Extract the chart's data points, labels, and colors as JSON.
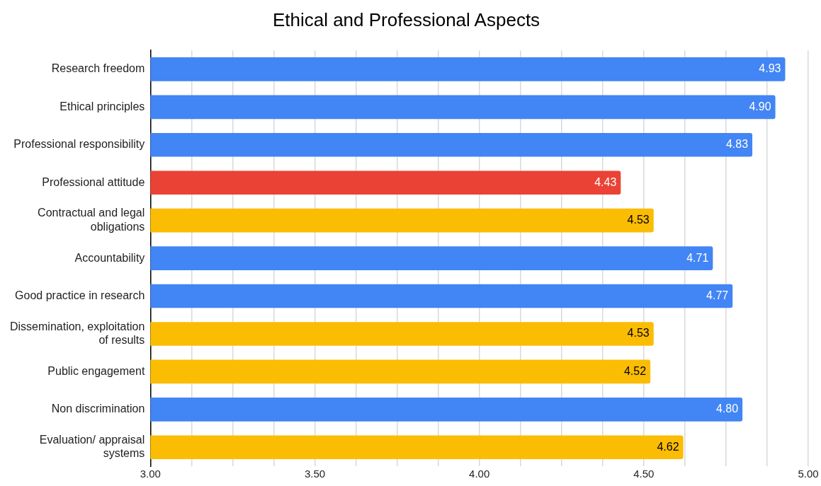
{
  "chart_data": {
    "type": "bar",
    "orientation": "horizontal",
    "title": "Ethical and Professional Aspects",
    "categories": [
      "Research freedom",
      "Ethical principles",
      "Professional responsibility",
      "Professional attitude",
      "Contractual and legal obligations",
      "Accountability",
      "Good practice in research",
      "Dissemination, exploitation of results",
      "Public engagement",
      "Non discrimination",
      "Evaluation/ appraisal systems"
    ],
    "values": [
      4.93,
      4.9,
      4.83,
      4.43,
      4.53,
      4.71,
      4.77,
      4.53,
      4.52,
      4.8,
      4.62
    ],
    "value_labels": [
      "4.93",
      "4.90",
      "4.83",
      "4.43",
      "4.53",
      "4.71",
      "4.77",
      "4.53",
      "4.52",
      "4.80",
      "4.62"
    ],
    "colors": [
      "#4285f4",
      "#4285f4",
      "#4285f4",
      "#ea4335",
      "#fbbc04",
      "#4285f4",
      "#4285f4",
      "#fbbc04",
      "#fbbc04",
      "#4285f4",
      "#fbbc04"
    ],
    "xlim": [
      3,
      5
    ],
    "xticks": [
      {
        "value": 3,
        "label": "3.00"
      },
      {
        "value": 3.125,
        "label": null
      },
      {
        "value": 3.25,
        "label": null
      },
      {
        "value": 3.375,
        "label": null
      },
      {
        "value": 3.5,
        "label": "3.50"
      },
      {
        "value": 3.625,
        "label": null
      },
      {
        "value": 3.75,
        "label": null
      },
      {
        "value": 3.875,
        "label": null
      },
      {
        "value": 4,
        "label": "4.00"
      },
      {
        "value": 4.125,
        "label": null
      },
      {
        "value": 4.25,
        "label": null
      },
      {
        "value": 4.375,
        "label": null
      },
      {
        "value": 4.5,
        "label": "4.50"
      },
      {
        "value": 4.625,
        "label": null
      },
      {
        "value": 4.75,
        "label": null
      },
      {
        "value": 4.875,
        "label": null
      },
      {
        "value": 5,
        "label": "5.00"
      }
    ],
    "grid": "x"
  }
}
